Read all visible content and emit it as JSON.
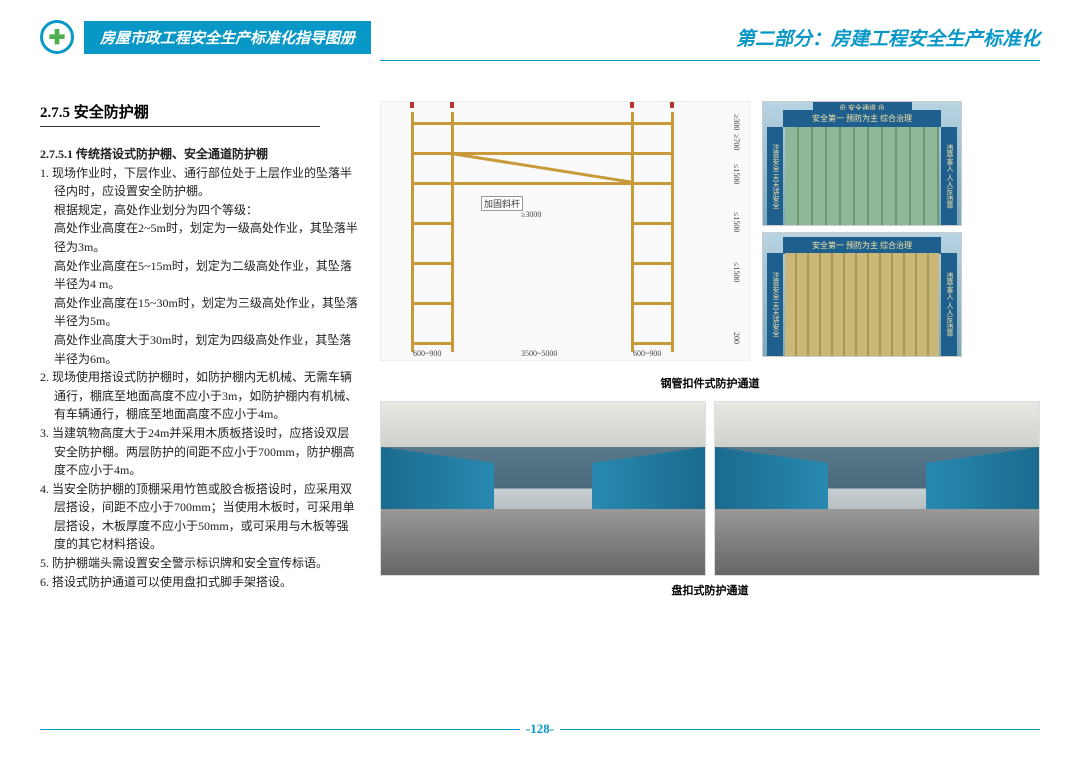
{
  "header": {
    "booklet_title": "房屋市政工程安全生产标准化指导图册",
    "part_title": "第二部分：房建工程安全生产标准化"
  },
  "section": {
    "number_title": "2.7.5 安全防护棚",
    "sub_heading": "2.7.5.1 传统搭设式防护棚、安全通道防护棚",
    "items": [
      "现场作业时，下层作业、通行部位处于上层作业的坠落半径内时，应设置安全防护棚。\n根据规定，高处作业划分为四个等级：\n高处作业高度在2~5m时，划定为一级高处作业，其坠落半径为3m。\n高处作业高度在5~15m时，划定为二级高处作业，其坠落半径为4 m。\n高处作业高度在15~30m时，划定为三级高处作业，其坠落半径为5m。\n高处作业高度大于30m时，划定为四级高处作业，其坠落半径为6m。",
      "现场使用搭设式防护棚时，如防护棚内无机械、无需车辆通行，棚底至地面高度不应小于3m，如防护棚内有机械、有车辆通行，棚底至地面高度不应小于4m。",
      "当建筑物高度大于24m并采用木质板搭设时，应搭设双层安全防护棚。两层防护的间距不应小于700mm，防护棚高度不应小于4m。",
      "当安全防护棚的顶棚采用竹笆或胶合板搭设时，应采用双层搭设，间距不应小于700mm；当使用木板时，可采用单层搭设，木板厚度不应小于50mm，或可采用与木板等强度的其它材料搭设。",
      "防护棚端头需设置安全警示标识牌和安全宣传标语。",
      "搭设式防护通道可以使用盘扣式脚手架搭设。"
    ]
  },
  "figures": {
    "diagram": {
      "brace_label": "加固斜杆",
      "span_dim": "≥3000",
      "bottom_dims": [
        "600~900",
        "3500~5000",
        "600~900"
      ],
      "right_dims": [
        "≥300",
        "≥700",
        "≤1500",
        "≤1500",
        "≤1500",
        "200"
      ],
      "caption": "钢管扣件式防护通道"
    },
    "tunnel": {
      "top_label": "⊕ 安全通道 ⊕",
      "banner": "安全第一 预防为主 综合治理",
      "pillar_left": "注意安全 天天讲安全",
      "pillar_right": "违章害人 人人反违章"
    },
    "photo_caption": "盘扣式防护通道"
  },
  "footer": {
    "page_number": "-128-"
  },
  "colors": {
    "brand": "#0898c7"
  }
}
